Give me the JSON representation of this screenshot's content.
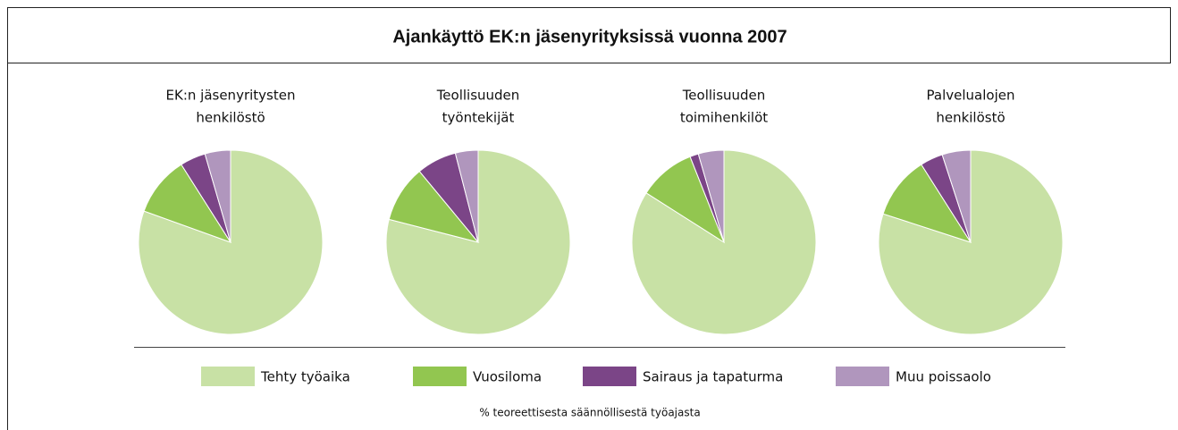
{
  "title": "Ajankäyttö EK:n jäsenyrityksissä vuonna 2007",
  "note": "% teoreettisesta säännöllisestä työajasta",
  "chart_data": [
    {
      "type": "pie",
      "title": [
        "EK:n jäsenyritysten",
        "henkilöstö"
      ],
      "categories": [
        "Tehty työaika",
        "Vuosiloma",
        "Sairaus ja tapaturma",
        "Muu poissaolo"
      ],
      "values": [
        80.5,
        10.5,
        4.5,
        4.5
      ],
      "colors": [
        "#c8e1a5",
        "#92c650",
        "#7b4587",
        "#b096bd"
      ]
    },
    {
      "type": "pie",
      "title": [
        "Teollisuuden",
        "työntekijät"
      ],
      "categories": [
        "Tehty työaika",
        "Vuosiloma",
        "Sairaus ja tapaturma",
        "Muu poissaolo"
      ],
      "values": [
        79,
        10,
        7,
        4
      ],
      "colors": [
        "#c8e1a5",
        "#92c650",
        "#7b4587",
        "#b096bd"
      ]
    },
    {
      "type": "pie",
      "title": [
        "Teollisuuden",
        "toimihenkilöt"
      ],
      "categories": [
        "Tehty työaika",
        "Vuosiloma",
        "Sairaus ja tapaturma",
        "Muu poissaolo"
      ],
      "values": [
        84,
        10,
        1.5,
        4.5
      ],
      "colors": [
        "#c8e1a5",
        "#92c650",
        "#7b4587",
        "#b096bd"
      ]
    },
    {
      "type": "pie",
      "title": [
        "Palvelualojen",
        "henkilöstö"
      ],
      "categories": [
        "Tehty työaika",
        "Vuosiloma",
        "Sairaus ja tapaturma",
        "Muu poissaolo"
      ],
      "values": [
        80,
        11,
        4,
        5
      ],
      "colors": [
        "#c8e1a5",
        "#92c650",
        "#7b4587",
        "#b096bd"
      ]
    }
  ]
}
